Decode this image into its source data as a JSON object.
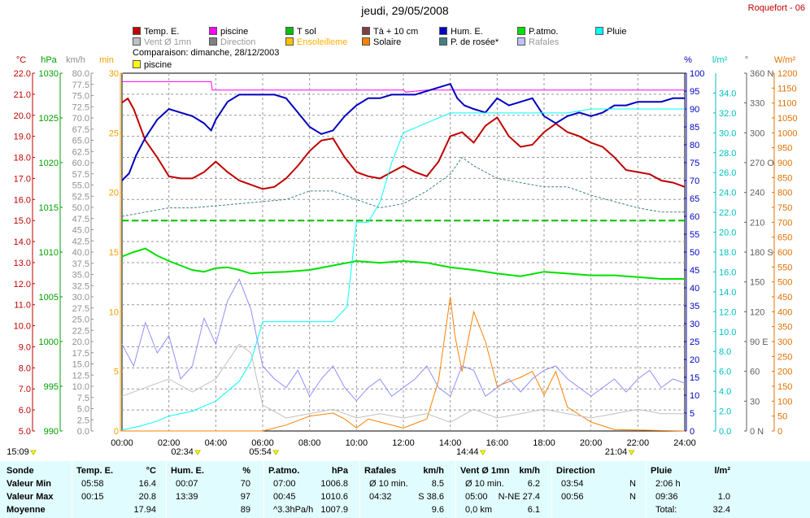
{
  "title": "jeudi, 29/05/2008",
  "station": "Roquefort - 06",
  "legend": [
    {
      "label": "Temp. E.",
      "color": "#c00000"
    },
    {
      "label": "piscine",
      "color": "#ff00ff"
    },
    {
      "label": "T sol",
      "color": "#00c000"
    },
    {
      "label": "Tà + 10 cm",
      "color": "#804040"
    },
    {
      "label": "Hum. E.",
      "color": "#0000c0"
    },
    {
      "label": "P.atmo.",
      "color": "#00e000"
    },
    {
      "label": "Pluie",
      "color": "#00ffff"
    },
    {
      "label": "Vent Ø 1mn",
      "color": "#c0c0c0"
    },
    {
      "label": "Direction",
      "color": "#808080"
    },
    {
      "label": "Ensoleilleme",
      "color": "#ffc000"
    },
    {
      "label": "Solaire",
      "color": "#ff8000"
    },
    {
      "label": "P. de rosée*",
      "color": "#408080"
    },
    {
      "label": "Rafales",
      "color": "#c0c0ff"
    }
  ],
  "comparison": {
    "text": "Comparaison: dimanche, 28/12/2003",
    "legend": "piscine",
    "color": "#ffff00"
  },
  "axes_units": {
    "temp": "°C",
    "press": "hPa",
    "wind": "km/h",
    "sun": "min",
    "hum": "%",
    "rain": "l/m²",
    "dir": "°",
    "solar": "W/m²"
  },
  "time_markers": [
    {
      "label": "15:09",
      "pos": 0
    },
    {
      "label": "02:34",
      "pos": 2.57
    },
    {
      "label": "05:54",
      "pos": 5.9
    },
    {
      "label": "14:44",
      "pos": 14.73
    },
    {
      "label": "21:04",
      "pos": 21.07
    }
  ],
  "chart_data": {
    "type": "line",
    "x_ticks": [
      "00:00",
      "02:00",
      "04:00",
      "06:00",
      "08:00",
      "10:00",
      "12:00",
      "14:00",
      "16:00",
      "18:00",
      "20:00",
      "22:00",
      "24:00"
    ],
    "xlim": [
      0,
      24
    ],
    "axes": {
      "temp": {
        "label": "°C",
        "range": [
          5,
          22
        ],
        "ticks": [
          "5.0",
          "6.0",
          "7.0",
          "8.0",
          "9.0",
          "10.0",
          "11.0",
          "12.0",
          "13.0",
          "14.0",
          "15.0",
          "16.0",
          "17.0",
          "18.0",
          "19.0",
          "20.0",
          "21.0",
          "22.0"
        ]
      },
      "press": {
        "label": "hPa",
        "range": [
          990,
          1030
        ],
        "ticks": [
          "990",
          "995",
          "1000",
          "1005",
          "1010",
          "1015",
          "1020",
          "1025",
          "1030"
        ]
      },
      "wind": {
        "label": "km/h",
        "range": [
          0,
          82.5
        ],
        "ticks": [
          "0.0",
          "2.5",
          "5.0",
          "7.5",
          "10.0",
          "12.5",
          "15.0",
          "17.5",
          "20.0",
          "22.5",
          "25.0",
          "27.5",
          "30.0",
          "32.5",
          "35.0",
          "37.5",
          "40.0",
          "42.5",
          "45.0",
          "47.5",
          "50.0",
          "52.5",
          "55.0",
          "57.5",
          "60.0",
          "62.5",
          "65.0",
          "67.5",
          "70.0",
          "72.5",
          "75.0",
          "77.5",
          "80.0"
        ]
      },
      "sun": {
        "label": "min",
        "range": [
          0,
          30
        ],
        "ticks": [
          "0",
          "5",
          "10",
          "15",
          "20",
          "25",
          "30"
        ]
      },
      "hum": {
        "label": "%",
        "range": [
          0,
          100
        ],
        "ticks": [
          "0",
          "5",
          "10",
          "15",
          "20",
          "25",
          "30",
          "35",
          "40",
          "45",
          "50",
          "55",
          "60",
          "65",
          "70",
          "75",
          "80",
          "85",
          "90",
          "95",
          "100"
        ]
      },
      "rain": {
        "label": "l/m²",
        "range": [
          0,
          36
        ],
        "ticks": [
          "0.0",
          "2.0",
          "4.0",
          "6.0",
          "8.0",
          "10.0",
          "12.0",
          "14.0",
          "16.0",
          "18.0",
          "20.0",
          "22.0",
          "24.0",
          "26.0",
          "28.0",
          "30.0",
          "32.0",
          "34.0"
        ]
      },
      "dir": {
        "label": "°",
        "range": [
          0,
          360
        ],
        "ticks": [
          "0 N",
          "30",
          "60",
          "90 E",
          "120",
          "150",
          "180 S",
          "210",
          "240",
          "270 O",
          "300",
          "330",
          "360 N"
        ]
      },
      "solar": {
        "label": "W/m²",
        "range": [
          0,
          1200
        ],
        "ticks": [
          "0",
          "50",
          "100",
          "150",
          "200",
          "250",
          "300",
          "350",
          "400",
          "450",
          "500",
          "550",
          "600",
          "650",
          "700",
          "750",
          "800",
          "850",
          "900",
          "950",
          "1000",
          "1050",
          "1100",
          "1150",
          "1200"
        ]
      }
    },
    "series": [
      {
        "name": "Temp. E.",
        "axis": "temp",
        "color": "#c00000",
        "x": [
          0,
          0.25,
          0.5,
          1,
          1.5,
          2,
          2.5,
          3,
          3.5,
          4,
          4.5,
          5,
          5.5,
          6,
          6.5,
          7,
          7.5,
          8,
          8.5,
          9,
          9.5,
          10,
          10.5,
          11,
          11.5,
          12,
          12.5,
          13,
          13.5,
          14,
          14.5,
          15,
          15.5,
          16,
          16.5,
          17,
          17.5,
          18,
          18.5,
          19,
          19.5,
          20,
          20.5,
          21,
          21.5,
          22,
          22.5,
          23,
          23.5,
          24
        ],
        "y": [
          20.6,
          20.8,
          20.3,
          18.8,
          18.0,
          17.1,
          17.0,
          17.0,
          17.3,
          17.8,
          17.3,
          16.9,
          16.7,
          16.5,
          16.6,
          17.0,
          17.6,
          18.3,
          18.8,
          18.9,
          18.0,
          17.3,
          17.1,
          17.0,
          17.3,
          17.6,
          17.3,
          17.1,
          17.8,
          19.0,
          19.2,
          18.7,
          19.5,
          19.9,
          19.0,
          18.5,
          18.6,
          19.2,
          19.6,
          19.2,
          19.0,
          18.7,
          18.5,
          18.0,
          17.4,
          17.3,
          17.2,
          16.9,
          16.8,
          16.6
        ]
      },
      {
        "name": "piscine",
        "axis": "temp",
        "color": "#ff00ff",
        "x": [
          0,
          3.8,
          3.85,
          4,
          12,
          12.1,
          13,
          14,
          14.2,
          24
        ],
        "y": [
          21.6,
          21.6,
          21.2,
          21.2,
          21.2,
          21.1,
          21.2,
          21.2,
          21.2,
          21.2
        ]
      },
      {
        "name": "Hum. E.",
        "axis": "hum",
        "color": "#0000c0",
        "x": [
          0,
          0.3,
          0.6,
          1,
          1.5,
          2,
          2.5,
          3,
          3.5,
          3.8,
          4,
          4.5,
          5,
          5.5,
          6,
          6.5,
          7,
          7.5,
          8,
          8.5,
          9,
          9.5,
          10,
          10.5,
          11,
          11.5,
          12,
          12.5,
          13,
          13.5,
          14,
          14.3,
          14.6,
          15,
          15.5,
          16,
          16.5,
          17,
          17.5,
          18,
          18.5,
          19,
          19.5,
          20,
          20.5,
          21,
          21.5,
          22,
          22.5,
          23,
          23.5,
          24
        ],
        "y": [
          70,
          72,
          77,
          82,
          87,
          90,
          89,
          88,
          86,
          84,
          87,
          92,
          94,
          94,
          94,
          94,
          93,
          89,
          85,
          83,
          84,
          88,
          91,
          93,
          93,
          94,
          94,
          94,
          95,
          96,
          97,
          93,
          91,
          90,
          89,
          93,
          91,
          92,
          93,
          88,
          86,
          88,
          89,
          88,
          89,
          91,
          91,
          92,
          92,
          92,
          93,
          93
        ]
      },
      {
        "name": "P.atmo.",
        "axis": "press",
        "color": "#00e000",
        "x": [
          0,
          0.5,
          1,
          1.5,
          2,
          2.5,
          3,
          3.5,
          4,
          4.5,
          5,
          5.5,
          6,
          7,
          8,
          9,
          10,
          11,
          12,
          13,
          14,
          15,
          16,
          17,
          18,
          19,
          20,
          21,
          22,
          23,
          24
        ],
        "y": [
          1009.5,
          1010,
          1010.4,
          1009.6,
          1009,
          1008.5,
          1008,
          1007.8,
          1008.2,
          1008.3,
          1008,
          1007.6,
          1007.7,
          1007.8,
          1008,
          1008.5,
          1009,
          1008.8,
          1009,
          1008.8,
          1008.3,
          1008,
          1007.6,
          1007.3,
          1007.8,
          1007.6,
          1007.4,
          1007.4,
          1007.2,
          1007,
          1007.0
        ]
      },
      {
        "name": "T sol",
        "axis": "temp",
        "color": "#00c000",
        "x": [
          0,
          24
        ],
        "y": [
          15.0,
          15.0
        ]
      },
      {
        "name": "Pluie",
        "axis": "rain",
        "color": "#00ffff",
        "x": [
          0,
          0.8,
          1.5,
          2,
          3,
          4,
          5,
          5.5,
          6,
          6.5,
          7,
          8,
          9,
          9.6,
          10,
          10.4,
          10.5,
          11,
          11.5,
          12,
          12.5,
          13,
          14,
          14.5,
          15,
          16,
          17,
          18,
          19,
          20,
          20.5,
          21,
          22,
          23,
          24
        ],
        "y": [
          0.1,
          0.5,
          1.0,
          1.5,
          2.0,
          3.0,
          5.0,
          7.0,
          11.0,
          11.0,
          11.0,
          11.0,
          11.0,
          12.5,
          21.0,
          21.0,
          21.0,
          23.0,
          27.0,
          30.0,
          30.5,
          31.0,
          32.0,
          32.0,
          32.0,
          32.0,
          32.0,
          32.0,
          32.0,
          32.4,
          32.4,
          32.4,
          32.4,
          32.4,
          32.4
        ]
      },
      {
        "name": "P. de rosée*",
        "axis": "temp",
        "color": "#408080",
        "x": [
          0,
          1,
          2,
          3,
          4,
          5,
          6,
          7,
          8,
          9,
          10,
          11,
          12,
          13,
          14,
          14.5,
          15,
          16,
          17,
          18,
          19,
          20,
          21,
          22,
          23,
          24
        ],
        "y": [
          15.2,
          15.4,
          15.6,
          15.6,
          15.7,
          15.8,
          15.9,
          16.0,
          16.4,
          16.4,
          16.0,
          15.6,
          15.8,
          16.4,
          17.2,
          18.0,
          17.6,
          17.0,
          16.8,
          16.6,
          16.6,
          16.2,
          15.9,
          15.6,
          15.4,
          15.4
        ]
      },
      {
        "name": "Solaire",
        "axis": "solar",
        "color": "#ff8000",
        "x": [
          0,
          6,
          7,
          8,
          9,
          9.5,
          10,
          10.5,
          11,
          12,
          13,
          13.5,
          14,
          14.2,
          14.5,
          15,
          15.5,
          16,
          17,
          17.5,
          18,
          18.5,
          19,
          20,
          21,
          24
        ],
        "y": [
          0,
          0,
          20,
          50,
          60,
          40,
          10,
          40,
          30,
          10,
          40,
          170,
          450,
          320,
          200,
          400,
          300,
          150,
          180,
          200,
          120,
          200,
          80,
          30,
          5,
          0
        ]
      },
      {
        "name": "Rafales",
        "axis": "wind",
        "color": "#9090ff",
        "x": [
          0,
          0.5,
          1,
          1.5,
          2,
          2.5,
          3,
          3.5,
          4,
          4.5,
          5,
          5.5,
          6,
          6.5,
          7,
          7.5,
          8,
          8.5,
          9,
          9.5,
          10,
          10.5,
          11,
          11.5,
          12,
          12.5,
          13,
          13.5,
          14,
          14.5,
          15,
          15.5,
          16,
          16.5,
          17,
          17.5,
          18,
          18.5,
          19,
          19.5,
          20,
          20.5,
          21,
          21.5,
          22,
          22.5,
          23,
          23.5,
          24
        ],
        "y": [
          20,
          15,
          25,
          18,
          22,
          12,
          15,
          26,
          20,
          30,
          35,
          28,
          15,
          12,
          10,
          14,
          8,
          12,
          15,
          10,
          7,
          10,
          12,
          8,
          10,
          12,
          15,
          10,
          8,
          15,
          14,
          8,
          10,
          12,
          9,
          12,
          14,
          15,
          12,
          10,
          8,
          10,
          12,
          9,
          12,
          14,
          10,
          12,
          11
        ]
      },
      {
        "name": "Vent Ø 1mn",
        "axis": "wind",
        "color": "#c0c0c0",
        "x": [
          0,
          1,
          2,
          3,
          4,
          5,
          5.5,
          6,
          7,
          8,
          9,
          10,
          11,
          12,
          13,
          14,
          15,
          16,
          17,
          18,
          19,
          20,
          21,
          22,
          23,
          24
        ],
        "y": [
          8,
          10,
          12,
          9,
          12,
          20,
          18,
          6,
          3,
          4,
          5,
          3,
          4,
          3,
          4,
          2,
          5,
          3,
          4,
          5,
          4,
          3,
          4,
          5,
          4,
          4
        ]
      }
    ]
  },
  "table": {
    "columns": [
      {
        "name": "Sonde",
        "unit": ""
      },
      {
        "name": "Temp. E.",
        "unit": "°C"
      },
      {
        "name": "Hum. E.",
        "unit": "%"
      },
      {
        "name": "P.atmo.",
        "unit": "hPa"
      },
      {
        "name": "Rafales",
        "unit": "km/h"
      },
      {
        "name": "Vent Ø 1mn",
        "unit": "km/h"
      },
      {
        "name": "Direction",
        "unit": ""
      },
      {
        "name": "Pluie",
        "unit": "l/m²"
      }
    ],
    "rows": [
      {
        "label": "Valeur Min",
        "cells": [
          [
            "05:58",
            "16.4"
          ],
          [
            "00:07",
            "70"
          ],
          [
            "07:00",
            "1006.8"
          ],
          [
            "Ø 10 min.",
            "8.5"
          ],
          [
            "Ø 10 min.",
            "6.2"
          ],
          [
            "03:54",
            "N"
          ],
          [
            "2:06 h",
            ""
          ]
        ]
      },
      {
        "label": "Valeur Max",
        "cells": [
          [
            "00:15",
            "20.8"
          ],
          [
            "13:39",
            "97"
          ],
          [
            "00:45",
            "1010.6"
          ],
          [
            "04:32",
            "S 38.6"
          ],
          [
            "05:00",
            "N-NE 27.4"
          ],
          [
            "00:56",
            "N"
          ],
          [
            "09:36",
            "1.0"
          ]
        ]
      },
      {
        "label": "Moyenne",
        "cells": [
          [
            "",
            "17.94"
          ],
          [
            "",
            "89"
          ],
          [
            "^3.3hPa/h",
            "1007.9"
          ],
          [
            "",
            "9.6"
          ],
          [
            "0,0 km",
            "6.1"
          ],
          [
            "",
            ""
          ],
          [
            "Total:",
            "32.4"
          ]
        ]
      }
    ]
  }
}
